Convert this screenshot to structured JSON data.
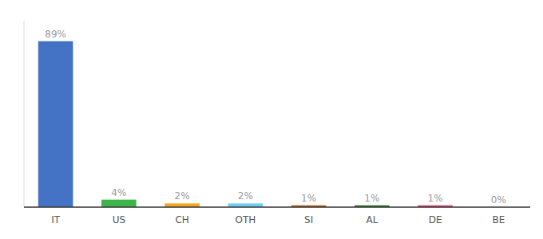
{
  "chart_data": {
    "type": "bar",
    "categories": [
      "IT",
      "US",
      "CH",
      "OTH",
      "SI",
      "AL",
      "DE",
      "BE"
    ],
    "values": [
      89,
      4,
      2,
      2,
      1,
      1,
      1,
      0
    ],
    "value_labels": [
      "89%",
      "4%",
      "2%",
      "2%",
      "1%",
      "1%",
      "1%",
      "0%"
    ],
    "colors": [
      "#4472c4",
      "#3cb54a",
      "#f5a623",
      "#6dcff6",
      "#b5651d",
      "#2d7a2d",
      "#e8417a",
      "#dddddd"
    ],
    "ylim": [
      0,
      100
    ],
    "data_labels": true,
    "tick_labels": "x",
    "grid": false
  }
}
